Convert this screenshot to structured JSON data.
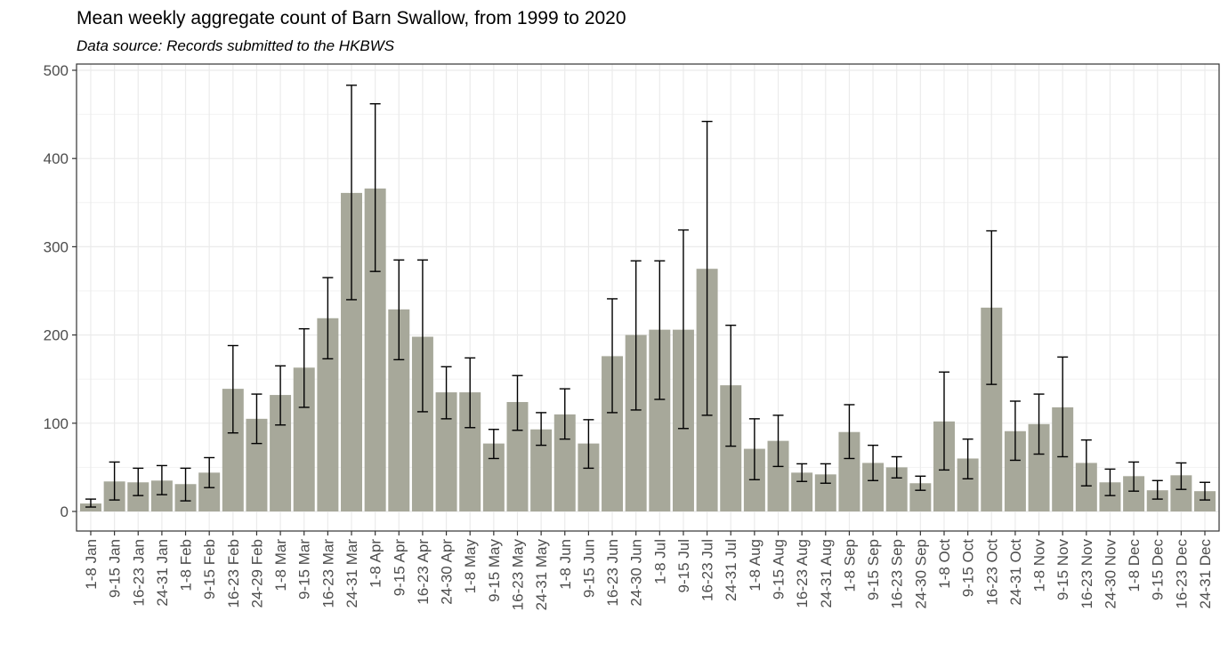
{
  "chart_data": {
    "type": "bar",
    "title": "Mean weekly aggregate count of Barn Swallow, from 1999 to 2020",
    "subtitle": "Data source: Records submitted to the HKBWS",
    "xlabel": "",
    "ylabel": "",
    "ylim": [
      0,
      500
    ],
    "yticks": [
      0,
      100,
      200,
      300,
      400,
      500
    ],
    "grid": true,
    "bar_color": "#a7a89a",
    "errorbar_color": "#000000",
    "categories": [
      "1-8 Jan",
      "9-15 Jan",
      "16-23 Jan",
      "24-31 Jan",
      "1-8 Feb",
      "9-15 Feb",
      "16-23 Feb",
      "24-29 Feb",
      "1-8 Mar",
      "9-15 Mar",
      "16-23 Mar",
      "24-31 Mar",
      "1-8 Apr",
      "9-15 Apr",
      "16-23 Apr",
      "24-30 Apr",
      "1-8 May",
      "9-15 May",
      "16-23 May",
      "24-31 May",
      "1-8 Jun",
      "9-15 Jun",
      "16-23 Jun",
      "24-30 Jun",
      "1-8 Jul",
      "9-15 Jul",
      "16-23 Jul",
      "24-31 Jul",
      "1-8 Aug",
      "9-15 Aug",
      "16-23 Aug",
      "24-31 Aug",
      "1-8 Sep",
      "9-15 Sep",
      "16-23 Sep",
      "24-30 Sep",
      "1-8 Oct",
      "9-15 Oct",
      "16-23 Oct",
      "24-31 Oct",
      "1-8 Nov",
      "9-15 Nov",
      "16-23 Nov",
      "24-30 Nov",
      "1-8 Dec",
      "9-15 Dec",
      "16-23 Dec",
      "24-31 Dec"
    ],
    "values": [
      9,
      34,
      33,
      35,
      31,
      44,
      139,
      105,
      132,
      163,
      219,
      361,
      366,
      229,
      198,
      135,
      135,
      77,
      124,
      93,
      110,
      77,
      176,
      200,
      206,
      206,
      275,
      143,
      71,
      80,
      44,
      42,
      90,
      55,
      50,
      32,
      102,
      60,
      231,
      91,
      99,
      118,
      55,
      33,
      40,
      24,
      41,
      23
    ],
    "error_low": [
      5,
      13,
      18,
      19,
      12,
      27,
      89,
      77,
      98,
      118,
      173,
      240,
      272,
      172,
      113,
      105,
      95,
      60,
      92,
      75,
      82,
      49,
      112,
      115,
      127,
      94,
      109,
      74,
      36,
      51,
      34,
      32,
      60,
      35,
      38,
      24,
      47,
      37,
      144,
      58,
      65,
      62,
      29,
      18,
      23,
      14,
      25,
      13
    ],
    "error_high": [
      14,
      56,
      49,
      52,
      49,
      61,
      188,
      133,
      165,
      207,
      265,
      483,
      462,
      285,
      285,
      164,
      174,
      93,
      154,
      112,
      139,
      104,
      241,
      284,
      284,
      319,
      442,
      211,
      105,
      109,
      54,
      54,
      121,
      75,
      62,
      40,
      158,
      82,
      318,
      125,
      133,
      175,
      81,
      48,
      56,
      35,
      55,
      33
    ]
  }
}
